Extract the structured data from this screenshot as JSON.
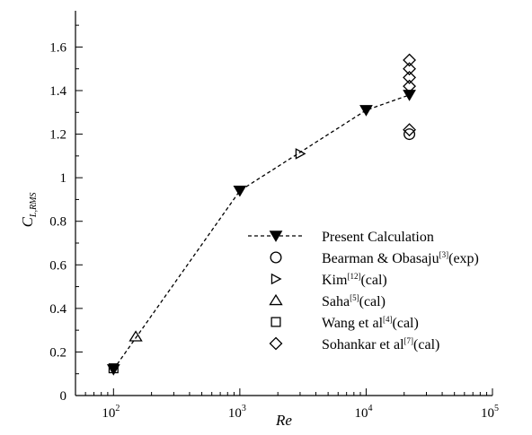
{
  "chart_data": {
    "type": "scatter",
    "xscale": "log",
    "xlim": [
      50,
      100000
    ],
    "ylim": [
      0,
      1.75
    ],
    "xlabel": "Re",
    "ylabel": {
      "main": "C",
      "sub": "L,RMS"
    },
    "x_ticks": [
      {
        "value": 100,
        "base": "10",
        "exp": "2"
      },
      {
        "value": 1000,
        "base": "10",
        "exp": "3"
      },
      {
        "value": 10000,
        "base": "10",
        "exp": "4"
      },
      {
        "value": 100000,
        "base": "10",
        "exp": "5"
      }
    ],
    "y_ticks": [
      "0",
      "0.2",
      "0.4",
      "0.6",
      "0.8",
      "1",
      "1.2",
      "1.4",
      "1.6"
    ],
    "grid": false,
    "legend_position": "right",
    "series": [
      {
        "name": "Present Calculation",
        "label_parts": [
          "Present Calculation",
          "",
          ""
        ],
        "marker": "triangle-down-filled",
        "line": "dashed",
        "points": [
          [
            100,
            0.12
          ],
          [
            1000,
            0.94
          ],
          [
            10000,
            1.31
          ],
          [
            22000,
            1.38
          ]
        ]
      },
      {
        "name": "Bearman & Obasaju[3](exp)",
        "label_parts": [
          "Bearman & Obasaju",
          "[3]",
          "(exp)"
        ],
        "marker": "circle-open",
        "points": [
          [
            22000,
            1.2
          ]
        ]
      },
      {
        "name": "Kim[12](cal)",
        "label_parts": [
          "Kim",
          "[12]",
          "(cal)"
        ],
        "marker": "triangle-right-open",
        "points": [
          [
            3000,
            1.11
          ]
        ]
      },
      {
        "name": "Saha[5](cal)",
        "label_parts": [
          "Saha",
          "[5]",
          "(cal)"
        ],
        "marker": "triangle-up-open",
        "points": [
          [
            150,
            0.27
          ]
        ]
      },
      {
        "name": "Wang et al[4](cal)",
        "label_parts": [
          "Wang et al",
          "[4]",
          "(cal)"
        ],
        "marker": "square-open",
        "points": [
          [
            100,
            0.125
          ]
        ]
      },
      {
        "name": "Sohankar et al[7](cal)",
        "label_parts": [
          "Sohankar et al",
          "[7]",
          "(cal)"
        ],
        "marker": "diamond-open",
        "points": [
          [
            22000,
            1.22
          ],
          [
            22000,
            1.42
          ],
          [
            22000,
            1.46
          ],
          [
            22000,
            1.5
          ],
          [
            22000,
            1.54
          ]
        ]
      }
    ]
  }
}
